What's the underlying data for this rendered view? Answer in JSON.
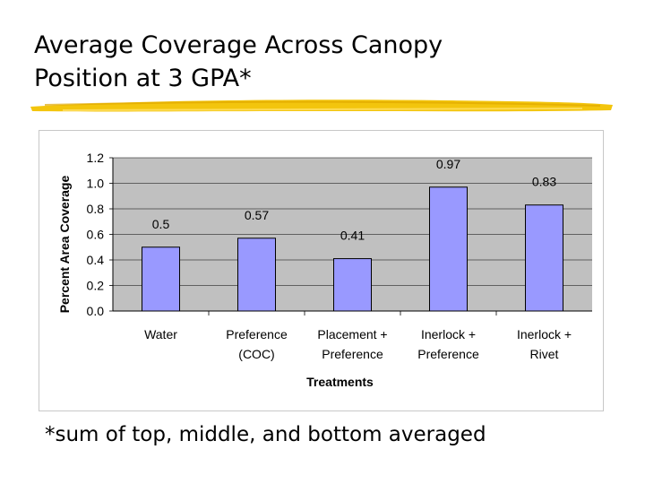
{
  "slide": {
    "title_line1": "Average Coverage Across Canopy",
    "title_line2": "Position at 3 GPA*",
    "footnote": "*sum of top, middle, and bottom averaged"
  },
  "colors": {
    "plot_bg": "#c0c0c0",
    "bar_fill": "#9999ff",
    "bar_stroke": "#000000",
    "swoosh": "#f2c200"
  },
  "chart_data": {
    "type": "bar",
    "categories": [
      [
        "Water"
      ],
      [
        "Preference",
        "(COC)"
      ],
      [
        "Placement +",
        "Preference"
      ],
      [
        "Inerlock +",
        "Preference"
      ],
      [
        "Inerlock +",
        "Rivet"
      ]
    ],
    "values": [
      0.5,
      0.57,
      0.41,
      0.97,
      0.83
    ],
    "data_labels": [
      "0.5",
      "0.57",
      "0.41",
      "0.97",
      "0.83"
    ],
    "xlabel": "Treatments",
    "ylabel": "Percent Area Coverage",
    "ylim": [
      0,
      1.2
    ],
    "yticks": [
      "0.0",
      "0.2",
      "0.4",
      "0.6",
      "0.8",
      "1.0",
      "1.2"
    ],
    "grid": true,
    "legend": "none"
  }
}
